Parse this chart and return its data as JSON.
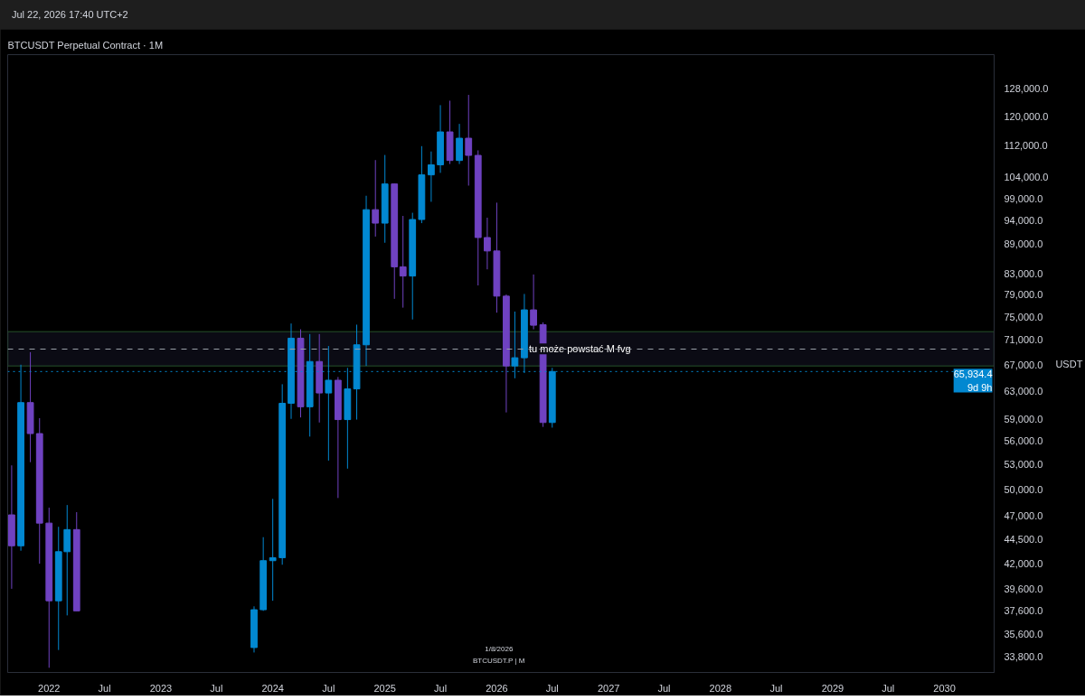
{
  "chart_data": {
    "type": "candlestick",
    "title": "BTCUSDT Perpetual Contract · 1M",
    "ylabel": "USDT",
    "x": [
      "2021-09",
      "2021-10",
      "2021-11",
      "2021-12",
      "2022-01",
      "2022-02",
      "2022-03",
      "2022-04",
      "2023-11",
      "2023-12",
      "2024-01",
      "2024-02",
      "2024-03",
      "2024-04",
      "2024-05",
      "2024-06",
      "2024-07",
      "2024-08",
      "2024-09",
      "2024-10",
      "2024-11",
      "2024-12",
      "2025-01",
      "2025-02",
      "2025-03",
      "2025-04",
      "2025-05",
      "2025-06",
      "2025-07",
      "2025-08",
      "2025-09",
      "2025-10",
      "2025-11",
      "2025-12",
      "2026-01",
      "2026-02",
      "2026-03",
      "2026-04",
      "2026-05",
      "2026-06",
      "2026-07"
    ],
    "ohlc": [
      [
        47100,
        52900,
        39600,
        43800
      ],
      [
        43800,
        67000,
        43300,
        61300
      ],
      [
        61300,
        69000,
        53300,
        57000
      ],
      [
        57000,
        59100,
        42000,
        46200
      ],
      [
        46200,
        47900,
        32900,
        38500
      ],
      [
        38500,
        45800,
        34300,
        43200
      ],
      [
        43200,
        48200,
        37200,
        45500
      ],
      [
        45500,
        47400,
        37600,
        37600
      ],
      [
        34500,
        38000,
        34100,
        37700
      ],
      [
        37700,
        44700,
        37600,
        42300
      ],
      [
        42300,
        48900,
        38500,
        42600
      ],
      [
        42600,
        64000,
        41900,
        61200
      ],
      [
        61200,
        73800,
        59000,
        71300
      ],
      [
        71300,
        72800,
        59200,
        60700
      ],
      [
        60700,
        72000,
        56600,
        67500
      ],
      [
        67500,
        72000,
        58500,
        62700
      ],
      [
        62700,
        70000,
        53500,
        64600
      ],
      [
        64600,
        65100,
        49000,
        58900
      ],
      [
        58900,
        66500,
        52500,
        63300
      ],
      [
        63300,
        73600,
        58900,
        70200
      ],
      [
        70200,
        99600,
        66800,
        96400
      ],
      [
        96400,
        108300,
        90500,
        93400
      ],
      [
        93400,
        109600,
        89200,
        102400
      ],
      [
        102400,
        102500,
        78200,
        84300
      ],
      [
        84300,
        95000,
        76600,
        82500
      ],
      [
        82500,
        95700,
        74500,
        94200
      ],
      [
        94200,
        111900,
        93400,
        104600
      ],
      [
        104600,
        110500,
        98200,
        107100
      ],
      [
        107100,
        123200,
        105100,
        115700
      ],
      [
        115700,
        124500,
        107300,
        108200
      ],
      [
        108200,
        117900,
        107300,
        114000
      ],
      [
        114000,
        126200,
        102000,
        109500
      ],
      [
        109500,
        110800,
        80700,
        90300
      ],
      [
        90300,
        94600,
        83800,
        87500
      ],
      [
        87500,
        98000,
        75700,
        78700
      ],
      [
        78700,
        79000,
        59900,
        66800
      ],
      [
        66800,
        75900,
        64900,
        68100
      ],
      [
        68100,
        79100,
        65700,
        76200
      ],
      [
        76200,
        82800,
        72800,
        73500
      ],
      [
        73600,
        74000,
        57900,
        58500
      ],
      [
        58500,
        66500,
        57800,
        65934.4
      ]
    ],
    "colors": [
      "#6f42c1",
      "#0288d1",
      "#6f42c1",
      "#6f42c1",
      "#6f42c1",
      "#0288d1",
      "#0288d1",
      "#6f42c1",
      "#0288d1",
      "#0288d1",
      "#0288d1",
      "#0288d1",
      "#0288d1",
      "#6f42c1",
      "#0288d1",
      "#6f42c1",
      "#0288d1",
      "#6f42c1",
      "#0288d1",
      "#0288d1",
      "#0288d1",
      "#6f42c1",
      "#0288d1",
      "#6f42c1",
      "#6f42c1",
      "#0288d1",
      "#0288d1",
      "#0288d1",
      "#0288d1",
      "#6f42c1",
      "#0288d1",
      "#6f42c1",
      "#6f42c1",
      "#6f42c1",
      "#6f42c1",
      "#6f42c1",
      "#0288d1",
      "#0288d1",
      "#6f42c1",
      "#6f42c1",
      "#0288d1"
    ],
    "xlim": [
      "2021-08-19",
      "2030-06-12"
    ],
    "xticks": [
      {
        "value": "2022-01",
        "label": "2022"
      },
      {
        "value": "2022-07",
        "label": "Jul"
      },
      {
        "value": "2023-01",
        "label": "2023"
      },
      {
        "value": "2023-07",
        "label": "Jul"
      },
      {
        "value": "2024-01",
        "label": "2024"
      },
      {
        "value": "2024-07",
        "label": "Jul"
      },
      {
        "value": "2025-01",
        "label": "2025"
      },
      {
        "value": "2025-07",
        "label": "Jul"
      },
      {
        "value": "2026-01",
        "label": "2026"
      },
      {
        "value": "2026-07",
        "label": "Jul"
      },
      {
        "value": "2027-01",
        "label": "2027"
      },
      {
        "value": "2027-07",
        "label": "Jul"
      },
      {
        "value": "2028-01",
        "label": "2028"
      },
      {
        "value": "2028-07",
        "label": "Jul"
      },
      {
        "value": "2029-01",
        "label": "2029"
      },
      {
        "value": "2029-07",
        "label": "Jul"
      },
      {
        "value": "2030-01",
        "label": "2030"
      }
    ],
    "ylim": [
      32540,
      138700
    ],
    "log": true,
    "yticks": [
      {
        "value": 33800,
        "label": "33,800.0"
      },
      {
        "value": 35600,
        "label": "35,600.0"
      },
      {
        "value": 37600,
        "label": "37,600.0"
      },
      {
        "value": 39600,
        "label": "39,600.0"
      },
      {
        "value": 42000,
        "label": "42,000.0"
      },
      {
        "value": 44500,
        "label": "44,500.0"
      },
      {
        "value": 47000,
        "label": "47,000.0"
      },
      {
        "value": 50000,
        "label": "50,000.0"
      },
      {
        "value": 53000,
        "label": "53,000.0"
      },
      {
        "value": 56000,
        "label": "56,000.0"
      },
      {
        "value": 59000,
        "label": "59,000.0"
      },
      {
        "value": 63000,
        "label": "63,000.0"
      },
      {
        "value": 67000,
        "label": "67,000.0"
      },
      {
        "value": 71000,
        "label": "71,000.0"
      },
      {
        "value": 75000,
        "label": "75,000.0"
      },
      {
        "value": 79000,
        "label": "79,000.0"
      },
      {
        "value": 83000,
        "label": "83,000.0"
      },
      {
        "value": 89000,
        "label": "89,000.0"
      },
      {
        "value": 94000,
        "label": "94,000.0"
      },
      {
        "value": 99000,
        "label": "99,000.0"
      },
      {
        "value": 104000,
        "label": "104,000.0"
      },
      {
        "value": 112000,
        "label": "112,000.0"
      },
      {
        "value": 120000,
        "label": "120,000.0"
      },
      {
        "value": 128000,
        "label": "128,000.0"
      }
    ],
    "grid": false,
    "ref_lines": [
      {
        "axis": "y",
        "value": 65934.4,
        "label": "65,934.4",
        "color": "#0288d1",
        "line_style": "dotted"
      },
      {
        "axis": "y",
        "value": 69500,
        "color": "#9aa0a8",
        "line_style": "dashed"
      }
    ],
    "bands": [
      {
        "axis": "y",
        "from": 66800,
        "to": 72400,
        "label": "tu może powstać M fvg",
        "color": "#4caf50"
      }
    ],
    "annotations": [
      "Jul 22, 2026 17:40 UTC+2",
      "9d 9h",
      "1/8/2026",
      "BTCUSDT.P | M"
    ]
  }
}
